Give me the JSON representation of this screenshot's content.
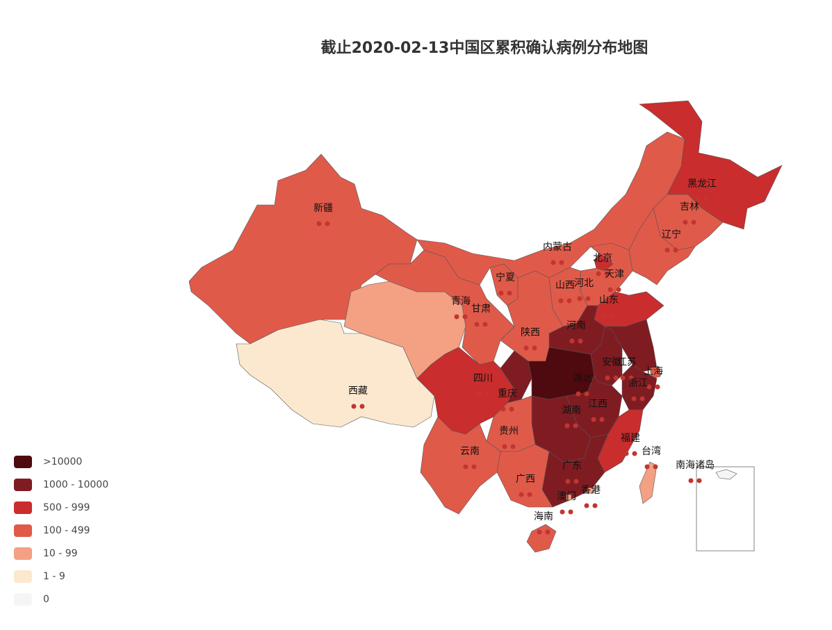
{
  "title": "截止2020-02-13中国区累积确认病例分布地图",
  "regions": [
    {
      "name": "新疆",
      "color": "#e05a4a"
    },
    {
      "name": "西藏",
      "color": "#fbe8cf"
    },
    {
      "name": "青海",
      "color": "#f3a083"
    },
    {
      "name": "甘肃",
      "color": "#e05a4a"
    },
    {
      "name": "宁夏",
      "color": "#e05a4a"
    },
    {
      "name": "内蒙古",
      "color": "#e05a4a"
    },
    {
      "name": "黑龙江",
      "color": "#c92d2d"
    },
    {
      "name": "吉林",
      "color": "#e05a4a"
    },
    {
      "name": "辽宁",
      "color": "#e05a4a"
    },
    {
      "name": "北京",
      "color": "#c92d2d"
    },
    {
      "name": "天津",
      "color": "#e05a4a"
    },
    {
      "name": "河北",
      "color": "#e05a4a"
    },
    {
      "name": "山西",
      "color": "#e05a4a"
    },
    {
      "name": "山东",
      "color": "#c92d2d"
    },
    {
      "name": "河南",
      "color": "#7f1c22"
    },
    {
      "name": "陕西",
      "color": "#e05a4a"
    },
    {
      "name": "四川",
      "color": "#c92d2d"
    },
    {
      "name": "重庆",
      "color": "#7f1c22"
    },
    {
      "name": "湖北",
      "color": "#4f0a0f"
    },
    {
      "name": "安徽",
      "color": "#7f1c22"
    },
    {
      "name": "江苏",
      "color": "#7f1c22"
    },
    {
      "name": "上海",
      "color": "#e05a4a"
    },
    {
      "name": "浙江",
      "color": "#7f1c22"
    },
    {
      "name": "江西",
      "color": "#7f1c22"
    },
    {
      "name": "湖南",
      "color": "#7f1c22"
    },
    {
      "name": "贵州",
      "color": "#e05a4a"
    },
    {
      "name": "云南",
      "color": "#e05a4a"
    },
    {
      "name": "福建",
      "color": "#c92d2d"
    },
    {
      "name": "台湾",
      "color": "#f3a083"
    },
    {
      "name": "广东",
      "color": "#7f1c22"
    },
    {
      "name": "广西",
      "color": "#e05a4a"
    },
    {
      "name": "澳门",
      "color": "#f3a083"
    },
    {
      "name": "香港",
      "color": "#f3a083"
    },
    {
      "name": "海南",
      "color": "#e05a4a"
    },
    {
      "name": "南海诸岛",
      "color": "#f5f5f5"
    }
  ],
  "legend": [
    {
      "label": ">10000",
      "color": "#4f0a0f"
    },
    {
      "label": "1000 - 10000",
      "color": "#7f1c22"
    },
    {
      "label": "500 - 999",
      "color": "#c92d2d"
    },
    {
      "label": "100 - 499",
      "color": "#e05a4a"
    },
    {
      "label": "10 - 99",
      "color": "#f3a083"
    },
    {
      "label": "1 - 9",
      "color": "#fbe8cf"
    },
    {
      "label": "0",
      "color": "#f5f5f5"
    }
  ]
}
